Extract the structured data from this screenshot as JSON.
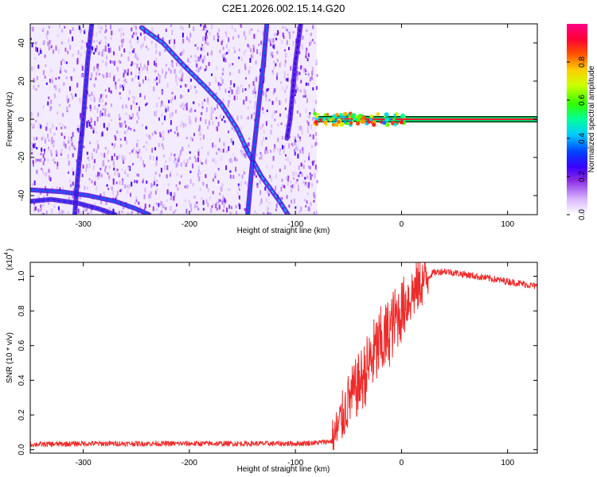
{
  "title": "C2E1.2026.002.15.14.G20",
  "colorbar": {
    "label": "Normalized spectral amplitude",
    "ticks": [
      "0.0",
      "0.2",
      "0.4",
      "0.6",
      "0.8"
    ],
    "tick_values": [
      0.0,
      0.2,
      0.4,
      0.6,
      0.8
    ],
    "range": [
      0,
      1
    ],
    "colormap": [
      "#ffffff",
      "#e6d2ff",
      "#9b30ff",
      "#5a00e0",
      "#0000ff",
      "#00ccff",
      "#00ff80",
      "#80ff00",
      "#ffff00",
      "#ff8000",
      "#ff0000",
      "#ff0080"
    ]
  },
  "colors": {
    "snr_line": "#ee2b2b",
    "frame": "#000000",
    "spectral_dense": "#6a1ee8",
    "spectral_light": "#c9a8f5"
  },
  "chart_data": [
    {
      "type": "heatmap",
      "xlabel": "Height of straight line (km)",
      "ylabel": "Frequency (Hz)",
      "xlim": [
        -350,
        128
      ],
      "ylim": [
        -50,
        50
      ],
      "xticks": [
        -300,
        -200,
        -100,
        0,
        100
      ],
      "xtick_labels": [
        "-300",
        "-200",
        "-100",
        "0",
        "100"
      ],
      "yticks": [
        -40,
        -20,
        0,
        20,
        40
      ],
      "ytick_labels": [
        "-40",
        "-20",
        "0",
        "20",
        "40"
      ],
      "grid": false,
      "features": [
        {
          "kind": "noise_region",
          "x": [
            -350,
            -80
          ],
          "y": [
            -50,
            50
          ],
          "amplitude": 0.15
        },
        {
          "kind": "track",
          "amplitude": 0.4,
          "points": [
            [
              -245,
              48
            ],
            [
              -225,
              40
            ],
            [
              -205,
              28
            ],
            [
              -185,
              17
            ],
            [
              -170,
              8
            ],
            [
              -155,
              -5
            ],
            [
              -145,
              -17
            ],
            [
              -132,
              -30
            ],
            [
              -115,
              -43
            ],
            [
              -107,
              -50
            ]
          ]
        },
        {
          "kind": "track",
          "amplitude": 0.35,
          "points": [
            [
              -350,
              -37
            ],
            [
              -320,
              -38
            ],
            [
              -295,
              -40
            ],
            [
              -270,
              -43
            ],
            [
              -250,
              -47
            ],
            [
              -238,
              -50
            ]
          ]
        },
        {
          "kind": "track",
          "amplitude": 0.3,
          "points": [
            [
              -350,
              -43
            ],
            [
              -330,
              -42
            ],
            [
              -305,
              -44
            ],
            [
              -285,
              -47
            ],
            [
              -270,
              -50
            ]
          ]
        },
        {
          "kind": "track",
          "amplitude": 0.3,
          "points": [
            [
              -292,
              50
            ],
            [
              -296,
              30
            ],
            [
              -300,
              0
            ],
            [
              -306,
              -35
            ],
            [
              -308,
              -50
            ]
          ]
        },
        {
          "kind": "track",
          "amplitude": 0.35,
          "points": [
            [
              -127,
              50
            ],
            [
              -130,
              30
            ],
            [
              -135,
              5
            ],
            [
              -141,
              -25
            ],
            [
              -145,
              -50
            ]
          ]
        },
        {
          "kind": "track",
          "amplitude": 0.25,
          "points": [
            [
              -95,
              50
            ],
            [
              -100,
              30
            ],
            [
              -105,
              0
            ],
            [
              -108,
              -10
            ]
          ]
        },
        {
          "kind": "carrier",
          "amplitude": 0.9,
          "points": [
            [
              -80,
              0
            ],
            [
              -50,
              0.3
            ],
            [
              -20,
              0
            ],
            [
              0,
              0
            ],
            [
              128,
              0
            ]
          ]
        }
      ]
    },
    {
      "type": "line",
      "xlabel": "Height of straight line (km)",
      "ylabel": "SNR (10 * v/v)",
      "yscale_label": "(x10",
      "yscale_exp": "4",
      "xlim": [
        -350,
        128
      ],
      "ylim": [
        -0.02,
        1.08
      ],
      "xticks": [
        -300,
        -200,
        -100,
        0,
        100
      ],
      "xtick_labels": [
        "-300",
        "-200",
        "-100",
        "0",
        "100"
      ],
      "yticks": [
        0.0,
        0.2,
        0.4,
        0.6,
        0.8,
        1.0
      ],
      "ytick_labels": [
        "0.0",
        "0.2",
        "0.4",
        "0.6",
        "0.8",
        "1.0"
      ],
      "grid": false,
      "series": [
        {
          "x": [
            -350,
            -300,
            -250,
            -200,
            -150,
            -100,
            -80,
            -65,
            -60,
            -55,
            -50,
            -45,
            -40,
            -35,
            -30,
            -25,
            -20,
            -15,
            -10,
            -5,
            0,
            5,
            10,
            20,
            30,
            40,
            50,
            60,
            70,
            80,
            90,
            100,
            110,
            120,
            128
          ],
          "y": [
            0.03,
            0.035,
            0.035,
            0.035,
            0.035,
            0.035,
            0.04,
            0.05,
            0.12,
            0.2,
            0.28,
            0.33,
            0.38,
            0.43,
            0.5,
            0.56,
            0.6,
            0.64,
            0.7,
            0.76,
            0.8,
            0.86,
            0.9,
            0.97,
            1.02,
            1.03,
            1.02,
            1.01,
            1.0,
            0.99,
            0.98,
            0.97,
            0.96,
            0.95,
            0.94
          ]
        }
      ]
    }
  ]
}
